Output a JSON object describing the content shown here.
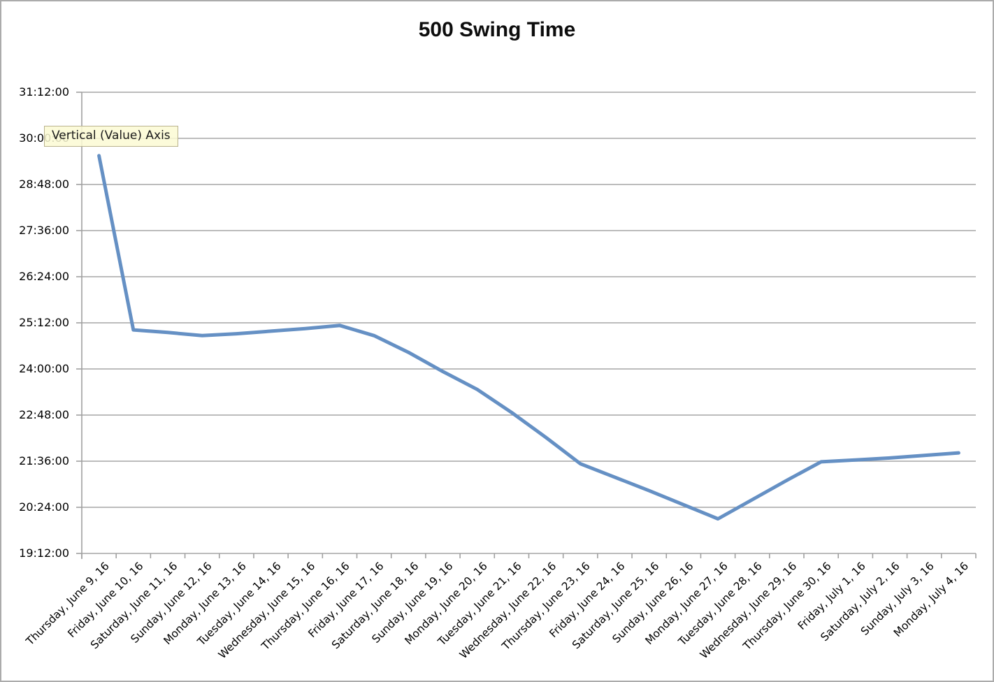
{
  "title": "500 Swing Time",
  "tooltip": {
    "text": "Vertical (Value) Axis"
  },
  "colors": {
    "series_line": "#6590C4",
    "gridline": "#A6A6A6",
    "axis_line": "#A0A0A0",
    "tooltip_bg": "#FCFAD3",
    "tooltip_border": "#B9B28E",
    "title_text": "#0D0D0D",
    "frame_border": "#ABABAB"
  },
  "chart_data": {
    "type": "line",
    "title": "500 Swing Time",
    "xlabel": "",
    "ylabel": "",
    "legend": "none",
    "grid": "horizontal",
    "ylim": [
      "19:12:00",
      "31:12:00"
    ],
    "ytick_interval": "1:12:00",
    "yticks_top_to_bottom": [
      "31:12:00",
      "30:00:00",
      "28:48:00",
      "27:36:00",
      "26:24:00",
      "25:12:00",
      "24:00:00",
      "22:48:00",
      "21:36:00",
      "20:24:00",
      "19:12:00"
    ],
    "categories": [
      "Thursday, June 9, 16",
      "Friday, June 10, 16",
      "Saturday, June 11, 16",
      "Sunday, June 12, 16",
      "Monday, June 13, 16",
      "Tuesday, June 14, 16",
      "Wednesday, June 15, 16",
      "Thursday, June 16, 16",
      "Friday, June 17, 16",
      "Saturday, June 18, 16",
      "Sunday, June 19, 16",
      "Monday, June 20, 16",
      "Tuesday, June 21, 16",
      "Wednesday, June 22, 16",
      "Thursday, June 23, 16",
      "Friday, June 24, 16",
      "Saturday, June 25, 16",
      "Sunday, June 26, 16",
      "Monday, June 27, 16",
      "Tuesday, June 28, 16",
      "Wednesday, June 29, 16",
      "Thursday, June 30, 16",
      "Friday, July 1, 16",
      "Saturday, July 2, 16",
      "Sunday, July 3, 16",
      "Monday, July 4, 16"
    ],
    "series": [
      {
        "name": "500 Swing Time",
        "values_hms": [
          "29:33:00",
          "25:01:00",
          "24:57:00",
          "24:52:00",
          "24:55:00",
          "24:59:00",
          "25:03:00",
          "25:08:00",
          "24:52:00",
          "24:26:00",
          "23:56:00",
          "23:28:00",
          "22:52:00",
          "22:13:00",
          "21:32:00",
          "21:11:00",
          "20:50:00",
          "20:28:00",
          "20:06:00",
          "20:36:00",
          "21:06:00",
          "21:35:00",
          "21:38:00",
          "21:41:00",
          "21:45:00",
          "21:49:00"
        ]
      }
    ]
  }
}
